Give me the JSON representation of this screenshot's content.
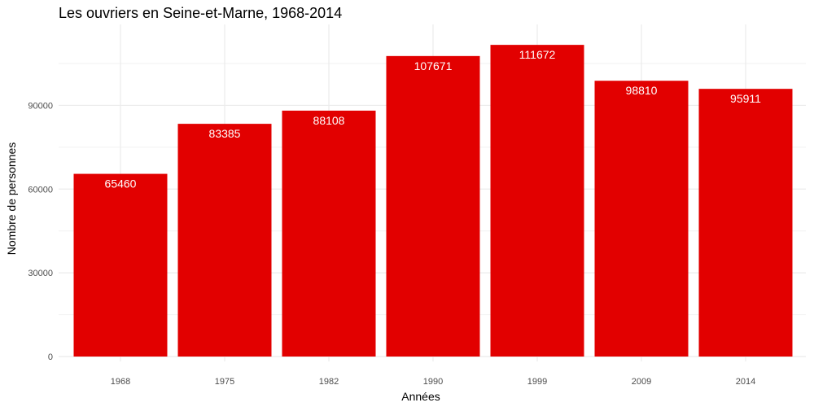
{
  "chart_data": {
    "type": "bar",
    "title": "Les ouvriers en Seine-et-Marne, 1968-2014",
    "xlabel": "Années",
    "ylabel": "Nombre de personnes",
    "categories": [
      "1968",
      "1975",
      "1982",
      "1990",
      "1999",
      "2009",
      "2014"
    ],
    "values": [
      65460,
      83385,
      88108,
      107671,
      111672,
      98810,
      95911
    ],
    "ylim": [
      0,
      119000
    ],
    "yticks": [
      0,
      30000,
      60000,
      90000
    ],
    "ytick_labels": [
      "0",
      "30000",
      "60000",
      "90000"
    ],
    "bar_color": "#e20000",
    "grid": true,
    "data_labels": true
  }
}
